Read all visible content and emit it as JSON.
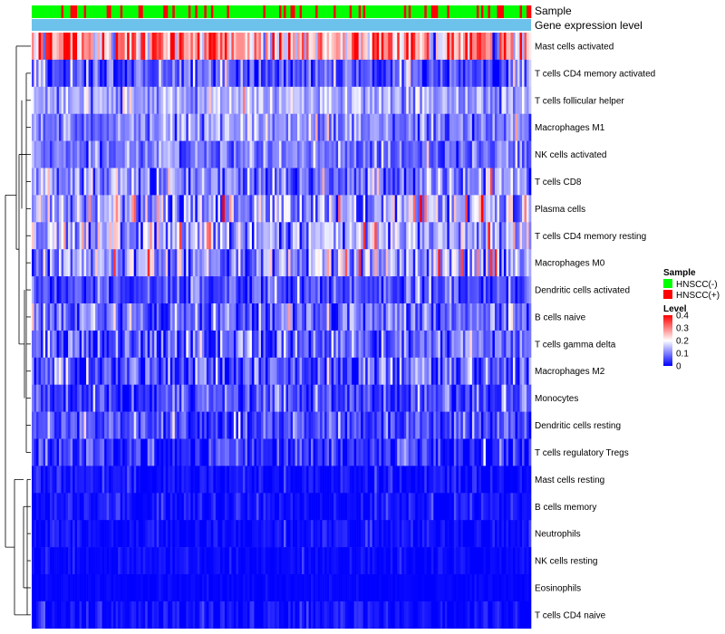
{
  "chart_data": {
    "type": "heatmap",
    "title": "",
    "annotation_tracks": [
      "Sample",
      "Gene expression level"
    ],
    "rows": [
      {
        "label": "Mast cells activated",
        "mean": 0.27,
        "spread": 0.11
      },
      {
        "label": "T cells CD4 memory activated",
        "mean": 0.06,
        "spread": 0.05
      },
      {
        "label": "T cells follicular helper",
        "mean": 0.13,
        "spread": 0.04
      },
      {
        "label": "Macrophages M1",
        "mean": 0.1,
        "spread": 0.04
      },
      {
        "label": "NK cells activated",
        "mean": 0.09,
        "spread": 0.04
      },
      {
        "label": "T cells CD8",
        "mean": 0.1,
        "spread": 0.06
      },
      {
        "label": "Plasma cells",
        "mean": 0.12,
        "spread": 0.07
      },
      {
        "label": "T cells CD4 memory resting",
        "mean": 0.13,
        "spread": 0.07
      },
      {
        "label": "Macrophages M0",
        "mean": 0.11,
        "spread": 0.07
      },
      {
        "label": "Dendritic cells activated",
        "mean": 0.06,
        "spread": 0.04
      },
      {
        "label": "B cells naive",
        "mean": 0.08,
        "spread": 0.05
      },
      {
        "label": "T cells gamma delta",
        "mean": 0.07,
        "spread": 0.05
      },
      {
        "label": "Macrophages M2",
        "mean": 0.07,
        "spread": 0.05
      },
      {
        "label": "Monocytes",
        "mean": 0.05,
        "spread": 0.04
      },
      {
        "label": "Dendritic cells resting",
        "mean": 0.05,
        "spread": 0.04
      },
      {
        "label": "T cells regulatory  Tregs",
        "mean": 0.03,
        "spread": 0.04
      },
      {
        "label": "Mast cells resting",
        "mean": 0.01,
        "spread": 0.02
      },
      {
        "label": "B cells memory",
        "mean": 0.01,
        "spread": 0.02
      },
      {
        "label": "Neutrophils",
        "mean": 0.01,
        "spread": 0.015
      },
      {
        "label": "NK cells resting",
        "mean": 0.005,
        "spread": 0.01
      },
      {
        "label": "Eosinophils",
        "mean": 0.002,
        "spread": 0.005
      },
      {
        "label": "T cells CD4 naive",
        "mean": 0.01,
        "spread": 0.02
      }
    ],
    "n_samples": 220,
    "fraction_hnscc_positive": 0.22,
    "color_scale": {
      "title": "Level",
      "min": 0,
      "max": 0.4,
      "ticks": [
        "0.4",
        "0.3",
        "0.2",
        "0.1",
        "0"
      ],
      "tick_values": [
        0.4,
        0.3,
        0.2,
        0.1,
        0
      ],
      "colors": [
        "#0000ff",
        "#ffffff",
        "#ff0000"
      ]
    },
    "legend": {
      "sample_title": "Sample",
      "entries": [
        {
          "label": "HNSCC(-)",
          "color": "#00ff00"
        },
        {
          "label": "HNSCC(+)",
          "color": "#ff0000"
        }
      ]
    },
    "expression_track_color": "#6cc2eb"
  }
}
